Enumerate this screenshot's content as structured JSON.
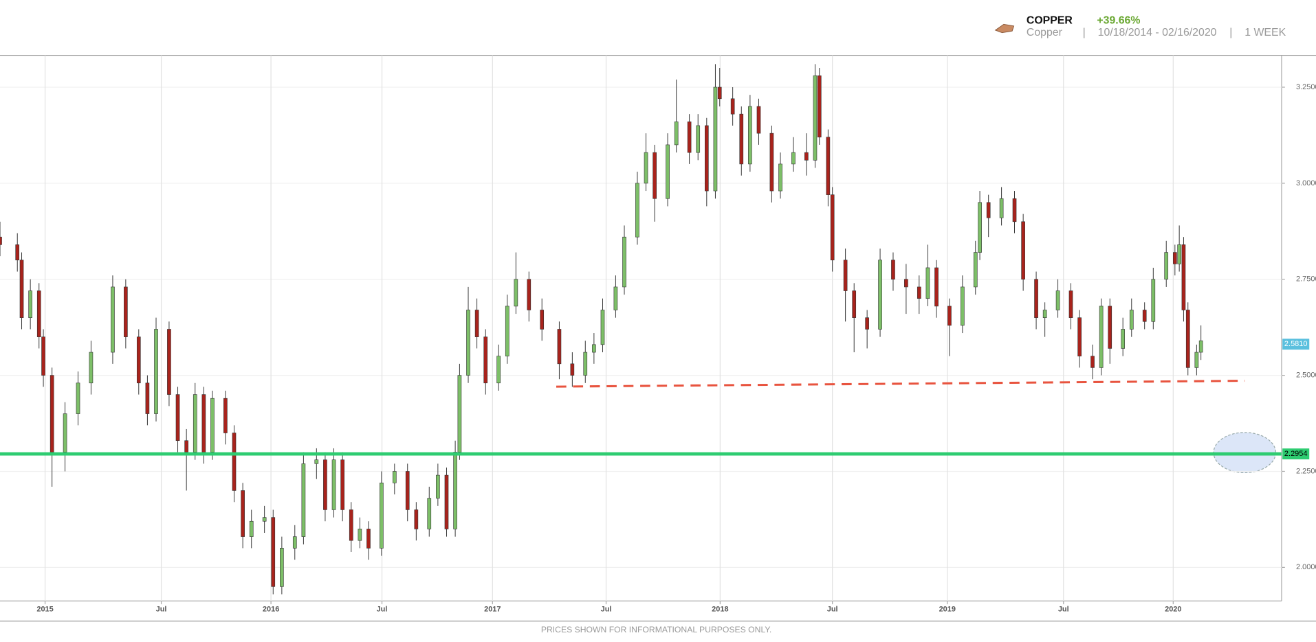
{
  "chart_data": {
    "type": "candlestick",
    "header": {
      "title": "COPPER",
      "change": "+39.66%",
      "subtitle": "Copper",
      "separators": [
        "|",
        "|"
      ],
      "range": "10/18/2014 - 02/16/2020",
      "interval": "1 WEEK"
    },
    "footer": "PRICES SHOWN FOR INFORMATIONAL PURPOSES ONLY.",
    "x": [
      0,
      4,
      5,
      7,
      9,
      10,
      12,
      15,
      18,
      21,
      26,
      29,
      32,
      34,
      36,
      39,
      41,
      43,
      45,
      47,
      49,
      52,
      54,
      56,
      58,
      61,
      63,
      65,
      68,
      70,
      73,
      75,
      77,
      79,
      81,
      83,
      85,
      88,
      91,
      94,
      96,
      99,
      101,
      103,
      105,
      106,
      108,
      110,
      112,
      115,
      117,
      119,
      122,
      125,
      129,
      132,
      135,
      137,
      139,
      142,
      144,
      147,
      149,
      151,
      154,
      156,
      159,
      161,
      163,
      165,
      166,
      169,
      171,
      173,
      175,
      178,
      180,
      183,
      186,
      188,
      189,
      191,
      192,
      195,
      197,
      200,
      203,
      206,
      209,
      212,
      214,
      216,
      219,
      222,
      225,
      226,
      228,
      231,
      234,
      236,
      239,
      241,
      244,
      247,
      249,
      252,
      254,
      256,
      259,
      261,
      264,
      266,
      269,
      271,
      272,
      273,
      274,
      276,
      277
    ],
    "open": [
      2.86,
      2.84,
      2.8,
      2.65,
      2.72,
      2.6,
      2.5,
      2.3,
      2.4,
      2.48,
      2.56,
      2.73,
      2.6,
      2.48,
      2.4,
      2.62,
      2.45,
      2.33,
      2.3,
      2.45,
      2.3,
      2.44,
      2.35,
      2.2,
      2.08,
      2.12,
      2.13,
      1.95,
      2.05,
      2.08,
      2.27,
      2.28,
      2.15,
      2.28,
      2.15,
      2.07,
      2.1,
      2.05,
      2.22,
      2.25,
      2.15,
      2.1,
      2.18,
      2.24,
      2.1,
      2.3,
      2.5,
      2.67,
      2.6,
      2.48,
      2.55,
      2.68,
      2.75,
      2.67,
      2.62,
      2.53,
      2.5,
      2.56,
      2.58,
      2.67,
      2.73,
      2.86,
      3.0,
      3.08,
      2.96,
      3.1,
      3.16,
      3.08,
      3.15,
      2.98,
      3.25,
      3.22,
      3.18,
      3.05,
      3.2,
      3.13,
      2.98,
      3.05,
      3.08,
      3.06,
      3.28,
      3.12,
      2.97,
      2.8,
      2.72,
      2.65,
      2.62,
      2.8,
      2.75,
      2.73,
      2.7,
      2.78,
      2.68,
      2.63,
      2.73,
      2.82,
      2.95,
      2.91,
      2.96,
      2.9,
      2.75,
      2.65,
      2.67,
      2.72,
      2.65,
      2.55,
      2.52,
      2.68,
      2.57,
      2.62,
      2.67,
      2.64,
      2.75,
      2.82,
      2.79,
      2.84,
      2.67,
      2.52,
      2.56
    ],
    "high": [
      2.9,
      2.87,
      2.82,
      2.75,
      2.74,
      2.62,
      2.52,
      2.43,
      2.51,
      2.59,
      2.76,
      2.75,
      2.62,
      2.5,
      2.65,
      2.64,
      2.47,
      2.36,
      2.48,
      2.47,
      2.46,
      2.46,
      2.37,
      2.22,
      2.15,
      2.16,
      2.15,
      2.08,
      2.11,
      2.3,
      2.31,
      2.3,
      2.31,
      2.3,
      2.17,
      2.13,
      2.12,
      2.25,
      2.27,
      2.27,
      2.17,
      2.21,
      2.27,
      2.26,
      2.33,
      2.53,
      2.73,
      2.7,
      2.62,
      2.58,
      2.71,
      2.82,
      2.77,
      2.7,
      2.64,
      2.56,
      2.59,
      2.61,
      2.7,
      2.76,
      2.89,
      3.03,
      3.13,
      3.1,
      3.13,
      3.27,
      3.18,
      3.18,
      3.17,
      3.31,
      3.3,
      3.25,
      3.2,
      3.23,
      3.22,
      3.15,
      3.08,
      3.12,
      3.13,
      3.31,
      3.3,
      3.14,
      2.99,
      2.83,
      2.74,
      2.67,
      2.83,
      2.82,
      2.79,
      2.76,
      2.84,
      2.8,
      2.7,
      2.76,
      2.85,
      2.98,
      2.97,
      2.99,
      2.98,
      2.92,
      2.77,
      2.69,
      2.75,
      2.74,
      2.67,
      2.58,
      2.7,
      2.7,
      2.65,
      2.7,
      2.69,
      2.78,
      2.85,
      2.84,
      2.89,
      2.86,
      2.69,
      2.58,
      2.63
    ],
    "low": [
      2.81,
      2.77,
      2.62,
      2.62,
      2.57,
      2.47,
      2.21,
      2.25,
      2.37,
      2.45,
      2.53,
      2.57,
      2.45,
      2.37,
      2.38,
      2.42,
      2.3,
      2.2,
      2.28,
      2.27,
      2.28,
      2.32,
      2.17,
      2.05,
      2.05,
      2.09,
      1.93,
      1.93,
      2.02,
      2.06,
      2.23,
      2.12,
      2.13,
      2.12,
      2.04,
      2.05,
      2.02,
      2.03,
      2.19,
      2.12,
      2.07,
      2.08,
      2.16,
      2.08,
      2.08,
      2.28,
      2.48,
      2.57,
      2.45,
      2.46,
      2.53,
      2.66,
      2.64,
      2.59,
      2.49,
      2.47,
      2.48,
      2.53,
      2.56,
      2.65,
      2.71,
      2.84,
      2.98,
      2.9,
      2.94,
      3.08,
      3.05,
      3.06,
      2.94,
      2.96,
      3.2,
      3.15,
      3.02,
      3.03,
      3.1,
      2.95,
      2.96,
      3.03,
      3.02,
      3.04,
      3.1,
      2.94,
      2.77,
      2.64,
      2.56,
      2.57,
      2.6,
      2.72,
      2.66,
      2.66,
      2.68,
      2.65,
      2.55,
      2.61,
      2.71,
      2.8,
      2.86,
      2.89,
      2.87,
      2.72,
      2.62,
      2.6,
      2.65,
      2.62,
      2.52,
      2.49,
      2.5,
      2.53,
      2.55,
      2.6,
      2.62,
      2.62,
      2.73,
      2.76,
      2.77,
      2.64,
      2.5,
      2.5,
      2.54
    ],
    "close": [
      2.84,
      2.8,
      2.65,
      2.72,
      2.6,
      2.5,
      2.3,
      2.4,
      2.48,
      2.56,
      2.73,
      2.6,
      2.48,
      2.4,
      2.62,
      2.45,
      2.33,
      2.3,
      2.45,
      2.3,
      2.44,
      2.35,
      2.2,
      2.08,
      2.12,
      2.13,
      1.95,
      2.05,
      2.08,
      2.27,
      2.28,
      2.15,
      2.28,
      2.15,
      2.07,
      2.1,
      2.05,
      2.22,
      2.25,
      2.15,
      2.1,
      2.18,
      2.24,
      2.1,
      2.3,
      2.5,
      2.67,
      2.6,
      2.48,
      2.55,
      2.68,
      2.75,
      2.67,
      2.62,
      2.53,
      2.5,
      2.56,
      2.58,
      2.67,
      2.73,
      2.86,
      3.0,
      3.08,
      2.96,
      3.1,
      3.16,
      3.08,
      3.15,
      2.98,
      3.25,
      3.22,
      3.18,
      3.05,
      3.2,
      3.13,
      2.98,
      3.05,
      3.08,
      3.06,
      3.28,
      3.12,
      2.97,
      2.8,
      2.72,
      2.65,
      2.62,
      2.8,
      2.75,
      2.73,
      2.7,
      2.78,
      2.68,
      2.63,
      2.73,
      2.82,
      2.95,
      2.91,
      2.96,
      2.9,
      2.75,
      2.65,
      2.67,
      2.72,
      2.65,
      2.55,
      2.52,
      2.68,
      2.57,
      2.62,
      2.67,
      2.64,
      2.75,
      2.82,
      2.79,
      2.84,
      2.67,
      2.52,
      2.56,
      2.59
    ],
    "up_color": "#7dbf68",
    "down_color": "#a8231c",
    "xlim": [
      0,
      295.6
    ],
    "xticks": [
      {
        "value": 10.4,
        "label": "2015"
      },
      {
        "value": 37.2,
        "label": "Jul"
      },
      {
        "value": 62.5,
        "label": "2016"
      },
      {
        "value": 88.1,
        "label": "Jul"
      },
      {
        "value": 113.6,
        "label": "2017"
      },
      {
        "value": 139.8,
        "label": "Jul"
      },
      {
        "value": 166.1,
        "label": "2018"
      },
      {
        "value": 192.0,
        "label": "Jul"
      },
      {
        "value": 218.5,
        "label": "2019"
      },
      {
        "value": 245.3,
        "label": "Jul"
      },
      {
        "value": 270.6,
        "label": "2020"
      }
    ],
    "ylim": [
      1.9127,
      3.333
    ],
    "yticks": [
      {
        "value": 2.0,
        "label": "2.0000"
      },
      {
        "value": 2.25,
        "label": "2.2500"
      },
      {
        "value": 2.5,
        "label": "2.5000"
      },
      {
        "value": 2.75,
        "label": "2.7500"
      },
      {
        "value": 3.0,
        "label": "3.0000"
      },
      {
        "value": 3.25,
        "label": "3.2500"
      }
    ],
    "grid": true,
    "support_line": {
      "value": 2.2954,
      "label": "2.2954",
      "color": "#2ecc71"
    },
    "trend_line": {
      "x": [
        128.3,
        287.1
      ],
      "y": [
        2.4705,
        2.4858
      ],
      "color": "#e8543f"
    },
    "last_price": {
      "value": 2.581,
      "label": "2.5810",
      "color": "#5bc0de"
    }
  }
}
